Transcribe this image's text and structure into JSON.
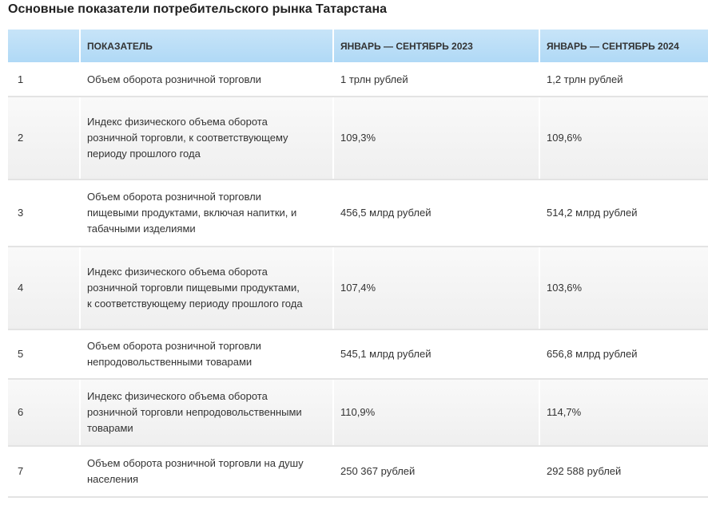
{
  "title": "Основные показатели потребительского рынка Татарстана",
  "table": {
    "headers": [
      "",
      "ПОКАЗАТЕЛЬ",
      "ЯНВАРЬ — СЕНТЯБРЬ 2023",
      "ЯНВАРЬ — СЕНТЯБРЬ 2024"
    ],
    "rows": [
      {
        "num": "1",
        "indicator": "Объем оборота розничной торговли",
        "y2023": "1 трлн рублей",
        "y2024": "1,2 трлн рублей"
      },
      {
        "num": "2",
        "indicator": "Индекс физического объема оборота розничной торговли, к соответствующему периоду прошлого года",
        "y2023": "109,3%",
        "y2024": "109,6%"
      },
      {
        "num": "3",
        "indicator": "Объем оборота розничной торговли пищевыми продуктами, включая напитки, и табачными изделиями",
        "y2023": "456,5 млрд рублей",
        "y2024": "514,2 млрд рублей"
      },
      {
        "num": "4",
        "indicator": "Индекс физического объема оборота розничной торговли пищевыми продуктами, к соответствующему периоду прошлого года",
        "y2023": "107,4%",
        "y2024": "103,6%"
      },
      {
        "num": "5",
        "indicator": "Объем оборота розничной торговли непродовольственными товарами",
        "y2023": "545,1 млрд рублей",
        "y2024": "656,8 млрд рублей"
      },
      {
        "num": "6",
        "indicator": "Индекс физического объема оборота розничной торговли непродовольственными товарами",
        "y2023": "110,9%",
        "y2024": "114,7%"
      },
      {
        "num": "7",
        "indicator": "Объем оборота розничной торговли на душу населения",
        "y2023": "250 367 рублей",
        "y2024": "292 588 рублей"
      }
    ]
  }
}
